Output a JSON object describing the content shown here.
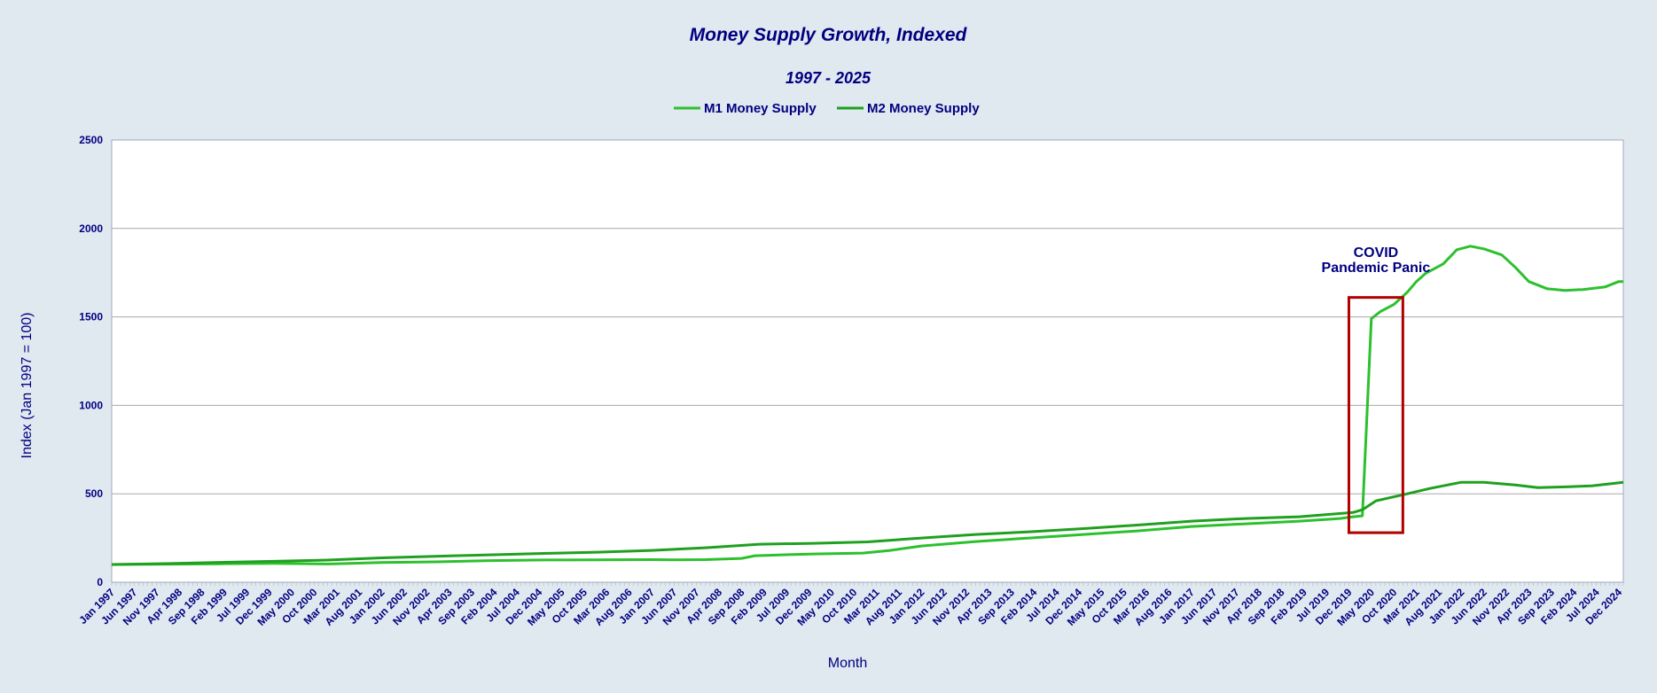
{
  "chart_data": {
    "type": "line",
    "title": "Money Supply Growth, Indexed",
    "subtitle": "1997 - 2025",
    "xlabel": "Month",
    "ylabel": "Index (Jan 1997 = 100)",
    "ylim": [
      0,
      2500
    ],
    "yticks": [
      0,
      500,
      1000,
      1500,
      2000,
      2500
    ],
    "grid": true,
    "legend_position": "top",
    "x_start": "1997-01",
    "x_end": "2025-01",
    "x_tick_labels": [
      "Jan 1997",
      "Jun 1997",
      "Nov 1997",
      "Apr 1998",
      "Sep 1998",
      "Feb 1999",
      "Jul 1999",
      "Dec 1999",
      "May 2000",
      "Oct 2000",
      "Mar 2001",
      "Aug 2001",
      "Jan 2002",
      "Jun 2002",
      "Nov 2002",
      "Apr 2003",
      "Sep 2003",
      "Feb 2004",
      "Jul 2004",
      "Dec 2004",
      "May 2005",
      "Oct 2005",
      "Mar 2006",
      "Aug 2006",
      "Jan 2007",
      "Jun 2007",
      "Nov 2007",
      "Apr 2008",
      "Sep 2008",
      "Feb 2009",
      "Jul 2009",
      "Dec 2009",
      "May 2010",
      "Oct 2010",
      "Mar 2011",
      "Aug 2011",
      "Jan 2012",
      "Jun 2012",
      "Nov 2012",
      "Apr 2013",
      "Sep 2013",
      "Feb 2014",
      "Jul 2014",
      "Dec 2014",
      "May 2015",
      "Oct 2015",
      "Mar 2016",
      "Aug 2016",
      "Jan 2017",
      "Jun 2017",
      "Nov 2017",
      "Apr 2018",
      "Sep 2018",
      "Feb 2019",
      "Jul 2019",
      "Dec 2019",
      "May 2020",
      "Oct 2020",
      "Mar 2021",
      "Aug 2021",
      "Jan 2022",
      "Jun 2022",
      "Nov 2022",
      "Apr 2023",
      "Sep 2023",
      "Feb 2024",
      "Jul 2024",
      "Dec 2024"
    ],
    "series": [
      {
        "name": "M1 Money Supply",
        "color": "#2dc02d",
        "points": [
          [
            "1997-01",
            100
          ],
          [
            "1998-01",
            102
          ],
          [
            "1999-01",
            104
          ],
          [
            "2000-01",
            106
          ],
          [
            "2001-01",
            103
          ],
          [
            "2001-06",
            106
          ],
          [
            "2002-01",
            111
          ],
          [
            "2003-01",
            115
          ],
          [
            "2004-01",
            122
          ],
          [
            "2005-01",
            126
          ],
          [
            "2006-01",
            127
          ],
          [
            "2007-01",
            128
          ],
          [
            "2007-06",
            127
          ],
          [
            "2008-01",
            128
          ],
          [
            "2008-09",
            135
          ],
          [
            "2008-12",
            150
          ],
          [
            "2009-06",
            155
          ],
          [
            "2010-01",
            160
          ],
          [
            "2010-12",
            165
          ],
          [
            "2011-06",
            180
          ],
          [
            "2012-01",
            205
          ],
          [
            "2013-01",
            230
          ],
          [
            "2014-01",
            250
          ],
          [
            "2015-01",
            270
          ],
          [
            "2016-01",
            290
          ],
          [
            "2017-01",
            315
          ],
          [
            "2018-01",
            330
          ],
          [
            "2019-01",
            345
          ],
          [
            "2019-10",
            360
          ],
          [
            "2020-01",
            370
          ],
          [
            "2020-03",
            375
          ],
          [
            "2020-05",
            1490
          ],
          [
            "2020-07",
            1530
          ],
          [
            "2020-10",
            1570
          ],
          [
            "2021-01",
            1640
          ],
          [
            "2021-03",
            1700
          ],
          [
            "2021-05",
            1745
          ],
          [
            "2021-09",
            1800
          ],
          [
            "2021-12",
            1880
          ],
          [
            "2022-03",
            1900
          ],
          [
            "2022-06",
            1885
          ],
          [
            "2022-10",
            1850
          ],
          [
            "2023-01",
            1780
          ],
          [
            "2023-04",
            1700
          ],
          [
            "2023-08",
            1660
          ],
          [
            "2023-12",
            1650
          ],
          [
            "2024-04",
            1655
          ],
          [
            "2024-09",
            1670
          ],
          [
            "2024-12",
            1700
          ],
          [
            "2025-01",
            1700
          ]
        ]
      },
      {
        "name": "M2 Money Supply",
        "color": "#1fa01f",
        "points": [
          [
            "1997-01",
            100
          ],
          [
            "1998-01",
            105
          ],
          [
            "1999-01",
            112
          ],
          [
            "2000-01",
            118
          ],
          [
            "2001-01",
            125
          ],
          [
            "2002-01",
            138
          ],
          [
            "2003-01",
            147
          ],
          [
            "2004-01",
            155
          ],
          [
            "2005-01",
            163
          ],
          [
            "2006-01",
            170
          ],
          [
            "2007-01",
            180
          ],
          [
            "2008-01",
            195
          ],
          [
            "2009-01",
            215
          ],
          [
            "2010-01",
            220
          ],
          [
            "2011-01",
            228
          ],
          [
            "2012-01",
            250
          ],
          [
            "2013-01",
            270
          ],
          [
            "2014-01",
            285
          ],
          [
            "2015-01",
            303
          ],
          [
            "2016-01",
            323
          ],
          [
            "2017-01",
            345
          ],
          [
            "2018-01",
            360
          ],
          [
            "2019-01",
            370
          ],
          [
            "2020-01",
            395
          ],
          [
            "2020-03",
            410
          ],
          [
            "2020-06",
            460
          ],
          [
            "2021-01",
            500
          ],
          [
            "2021-06",
            530
          ],
          [
            "2022-01",
            565
          ],
          [
            "2022-06",
            565
          ],
          [
            "2023-01",
            550
          ],
          [
            "2023-06",
            535
          ],
          [
            "2024-01",
            540
          ],
          [
            "2024-06",
            545
          ],
          [
            "2025-01",
            565
          ]
        ]
      }
    ],
    "annotation": {
      "lines": [
        "COVID",
        "Pandemic Panic"
      ],
      "box": {
        "x_from": "2019-12",
        "x_to": "2020-12",
        "y_from": 280,
        "y_to": 1610
      },
      "color": "#b00000"
    }
  }
}
